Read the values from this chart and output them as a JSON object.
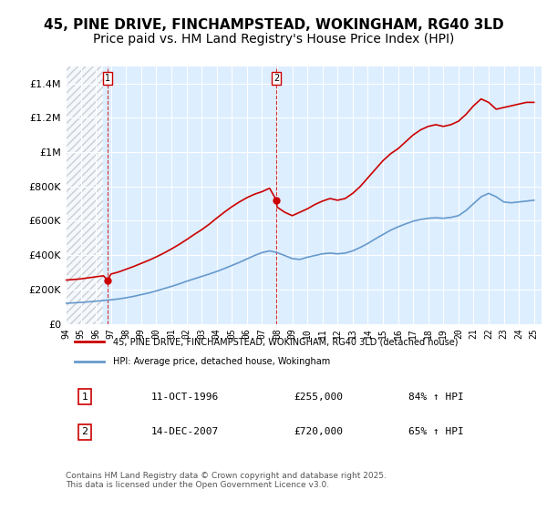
{
  "title": "45, PINE DRIVE, FINCHAMPSTEAD, WOKINGHAM, RG40 3LD",
  "subtitle": "Price paid vs. HM Land Registry's House Price Index (HPI)",
  "title_fontsize": 11,
  "subtitle_fontsize": 10,
  "background_color": "#ffffff",
  "plot_bg_color": "#ddeeff",
  "hatch_color": "#cccccc",
  "grid_color": "#ffffff",
  "ylim": [
    0,
    1500000
  ],
  "yticks": [
    0,
    200000,
    400000,
    600000,
    800000,
    1000000,
    1200000,
    1400000
  ],
  "ytick_labels": [
    "£0",
    "£200K",
    "£400K",
    "£600K",
    "£800K",
    "£1M",
    "£1.2M",
    "£1.4M"
  ],
  "xlim_start": 1994.0,
  "xlim_end": 2025.5,
  "xticks": [
    1994,
    1995,
    1996,
    1997,
    1998,
    1999,
    2000,
    2001,
    2002,
    2003,
    2004,
    2005,
    2006,
    2007,
    2008,
    2009,
    2010,
    2011,
    2012,
    2013,
    2014,
    2015,
    2016,
    2017,
    2018,
    2019,
    2020,
    2021,
    2022,
    2023,
    2024,
    2025
  ],
  "red_line_color": "#cc0000",
  "blue_line_color": "#6699cc",
  "marker_color": "#cc0000",
  "vline_color": "#cc0000",
  "legend_label_red": "45, PINE DRIVE, FINCHAMPSTEAD, WOKINGHAM, RG40 3LD (detached house)",
  "legend_label_blue": "HPI: Average price, detached house, Wokingham",
  "annotation1_box": "1",
  "annotation1_date": "11-OCT-1996",
  "annotation1_price": "£255,000",
  "annotation1_hpi": "84% ↑ HPI",
  "annotation2_box": "2",
  "annotation2_date": "14-DEC-2007",
  "annotation2_price": "£720,000",
  "annotation2_hpi": "65% ↑ HPI",
  "footer": "Contains HM Land Registry data © Crown copyright and database right 2025.\nThis data is licensed under the Open Government Licence v3.0.",
  "sale1_x": 1996.78,
  "sale1_y": 255000,
  "sale2_x": 2007.95,
  "sale2_y": 720000,
  "red_x": [
    1994.0,
    1994.5,
    1995.0,
    1995.5,
    1996.0,
    1996.5,
    1996.78,
    1997.0,
    1997.5,
    1998.0,
    1998.5,
    1999.0,
    1999.5,
    2000.0,
    2000.5,
    2001.0,
    2001.5,
    2002.0,
    2002.5,
    2003.0,
    2003.5,
    2004.0,
    2004.5,
    2005.0,
    2005.5,
    2006.0,
    2006.5,
    2007.0,
    2007.5,
    2007.95,
    2008.0,
    2008.5,
    2009.0,
    2009.5,
    2010.0,
    2010.5,
    2011.0,
    2011.5,
    2012.0,
    2012.5,
    2013.0,
    2013.5,
    2014.0,
    2014.5,
    2015.0,
    2015.5,
    2016.0,
    2016.5,
    2017.0,
    2017.5,
    2018.0,
    2018.5,
    2019.0,
    2019.5,
    2020.0,
    2020.5,
    2021.0,
    2021.5,
    2022.0,
    2022.5,
    2023.0,
    2023.5,
    2024.0,
    2024.5,
    2025.0
  ],
  "red_y": [
    255000,
    258000,
    262000,
    268000,
    274000,
    280000,
    255000,
    290000,
    302000,
    318000,
    334000,
    352000,
    370000,
    390000,
    412000,
    436000,
    462000,
    490000,
    520000,
    548000,
    580000,
    616000,
    650000,
    682000,
    710000,
    735000,
    755000,
    770000,
    790000,
    720000,
    680000,
    650000,
    630000,
    650000,
    670000,
    695000,
    715000,
    730000,
    720000,
    730000,
    760000,
    800000,
    850000,
    900000,
    950000,
    990000,
    1020000,
    1060000,
    1100000,
    1130000,
    1150000,
    1160000,
    1150000,
    1160000,
    1180000,
    1220000,
    1270000,
    1310000,
    1290000,
    1250000,
    1260000,
    1270000,
    1280000,
    1290000,
    1290000
  ],
  "blue_x": [
    1994.0,
    1994.5,
    1995.0,
    1995.5,
    1996.0,
    1996.5,
    1997.0,
    1997.5,
    1998.0,
    1998.5,
    1999.0,
    1999.5,
    2000.0,
    2000.5,
    2001.0,
    2001.5,
    2002.0,
    2002.5,
    2003.0,
    2003.5,
    2004.0,
    2004.5,
    2005.0,
    2005.5,
    2006.0,
    2006.5,
    2007.0,
    2007.5,
    2008.0,
    2008.5,
    2009.0,
    2009.5,
    2010.0,
    2010.5,
    2011.0,
    2011.5,
    2012.0,
    2012.5,
    2013.0,
    2013.5,
    2014.0,
    2014.5,
    2015.0,
    2015.5,
    2016.0,
    2016.5,
    2017.0,
    2017.5,
    2018.0,
    2018.5,
    2019.0,
    2019.5,
    2020.0,
    2020.5,
    2021.0,
    2021.5,
    2022.0,
    2022.5,
    2023.0,
    2023.5,
    2024.0,
    2024.5,
    2025.0
  ],
  "blue_y": [
    120000,
    122000,
    125000,
    128000,
    132000,
    136000,
    140000,
    145000,
    152000,
    160000,
    170000,
    180000,
    192000,
    205000,
    218000,
    232000,
    248000,
    262000,
    276000,
    290000,
    305000,
    322000,
    340000,
    358000,
    378000,
    398000,
    415000,
    425000,
    415000,
    398000,
    380000,
    375000,
    388000,
    398000,
    408000,
    412000,
    408000,
    412000,
    425000,
    445000,
    468000,
    495000,
    520000,
    545000,
    565000,
    582000,
    598000,
    608000,
    615000,
    618000,
    615000,
    620000,
    630000,
    660000,
    700000,
    740000,
    760000,
    740000,
    710000,
    705000,
    710000,
    715000,
    720000
  ]
}
